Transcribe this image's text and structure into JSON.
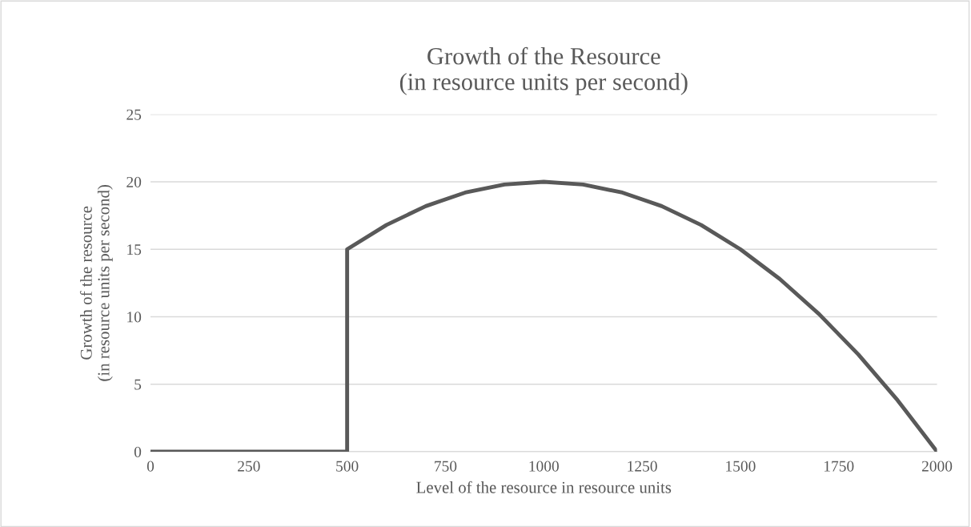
{
  "chart_data": {
    "type": "line",
    "title": "Growth of the Resource\n(in resource units per second)",
    "xlabel": "Level of the resource in resource units",
    "ylabel": "Growth of the resource\n(in resource units per second)",
    "x": [
      0,
      500,
      500,
      600,
      700,
      800,
      900,
      1000,
      1100,
      1200,
      1300,
      1400,
      1500,
      1600,
      1700,
      1800,
      1900,
      2000
    ],
    "series": [
      {
        "color": "#595959",
        "values": [
          0,
          0,
          15,
          16.8,
          18.2,
          19.2,
          19.8,
          20,
          19.8,
          19.2,
          18.2,
          16.8,
          15,
          12.8,
          10.2,
          7.2,
          3.8,
          0
        ]
      }
    ],
    "xlim": [
      0,
      2000
    ],
    "xticks": [
      0,
      250,
      500,
      750,
      1000,
      1250,
      1500,
      1750,
      2000
    ],
    "ylim": [
      0,
      25
    ],
    "yticks": [
      0,
      5,
      10,
      15,
      20,
      25
    ],
    "grid": "y",
    "marker": "none",
    "line_style": "solid"
  }
}
